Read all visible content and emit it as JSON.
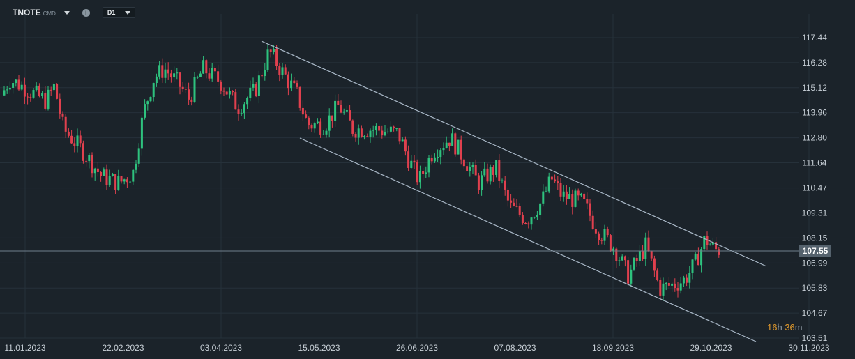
{
  "toolbar": {
    "symbol": "TNOTE",
    "symbol_sub": "CMD",
    "info_icon": "i",
    "timeframe": "D1"
  },
  "countdown": {
    "hours": "16",
    "h": "h",
    "minutes": "36",
    "m": "m"
  },
  "colors": {
    "background": "#1b232a",
    "up": "#2ec27e",
    "down": "#e0404e",
    "channel": "#a9b8c7",
    "grid": "#26313a",
    "price_line": "#6f7f8c",
    "countdown": "#e29a2c"
  },
  "chart_data": {
    "type": "candlestick",
    "y_ticks": [
      "117.44",
      "116.28",
      "115.12",
      "113.96",
      "112.80",
      "111.64",
      "110.47",
      "109.31",
      "108.15",
      "106.99",
      "105.83",
      "104.67",
      "103.51"
    ],
    "x_ticks": [
      "11.01.2023",
      "22.02.2023",
      "03.04.2023",
      "15.05.2023",
      "26.06.2023",
      "07.08.2023",
      "18.09.2023",
      "29.10.2023",
      "30.11.2023"
    ],
    "current_price": "107.55",
    "ylim": [
      103.51,
      117.44
    ],
    "grid": true,
    "channel": {
      "upper": [
        [
          "03.05.2023",
          117.2
        ],
        [
          "27.11.2023",
          106.9
        ]
      ],
      "lower": [
        [
          "15.05.2023",
          112.9
        ],
        [
          "27.11.2023",
          103.4
        ]
      ]
    },
    "series": [
      {
        "segment": "jan",
        "points": [
          [
            114.0,
            115.2
          ],
          [
            114.4,
            115.6
          ],
          [
            115.1,
            114.2
          ],
          [
            114.3,
            115.8
          ],
          [
            115.6,
            114.7
          ],
          [
            114.6,
            115.1
          ],
          [
            114.5,
            114.9
          ]
        ]
      }
    ],
    "path_keypoints": [
      [
        0,
        114.4
      ],
      [
        18,
        115.5
      ],
      [
        35,
        115.2
      ],
      [
        70,
        114.5
      ],
      [
        82,
        115.2
      ],
      [
        95,
        113.2
      ],
      [
        120,
        112.3
      ],
      [
        150,
        111.0
      ],
      [
        175,
        110.7
      ],
      [
        195,
        111.2
      ],
      [
        210,
        114.0
      ],
      [
        225,
        115.6
      ],
      [
        240,
        116.0
      ],
      [
        260,
        115.3
      ],
      [
        275,
        114.6
      ],
      [
        295,
        116.0
      ],
      [
        320,
        115.4
      ],
      [
        345,
        114.2
      ],
      [
        370,
        115.0
      ],
      [
        390,
        116.8
      ],
      [
        410,
        115.8
      ],
      [
        430,
        114.8
      ],
      [
        445,
        113.4
      ],
      [
        470,
        113.4
      ],
      [
        490,
        114.3
      ],
      [
        510,
        113.2
      ],
      [
        540,
        113.2
      ],
      [
        575,
        113.0
      ],
      [
        590,
        111.8
      ],
      [
        605,
        110.8
      ],
      [
        625,
        112.2
      ],
      [
        650,
        112.8
      ],
      [
        670,
        111.8
      ],
      [
        690,
        110.7
      ],
      [
        715,
        111.4
      ],
      [
        735,
        109.6
      ],
      [
        760,
        109.0
      ],
      [
        780,
        109.8
      ],
      [
        795,
        110.9
      ],
      [
        810,
        110.1
      ],
      [
        840,
        109.8
      ],
      [
        860,
        108.6
      ],
      [
        885,
        107.7
      ],
      [
        905,
        106.4
      ],
      [
        930,
        107.8
      ],
      [
        950,
        105.8
      ],
      [
        970,
        106.0
      ],
      [
        985,
        106.2
      ],
      [
        1000,
        106.9
      ],
      [
        1015,
        108.1
      ],
      [
        1030,
        107.6
      ]
    ]
  }
}
